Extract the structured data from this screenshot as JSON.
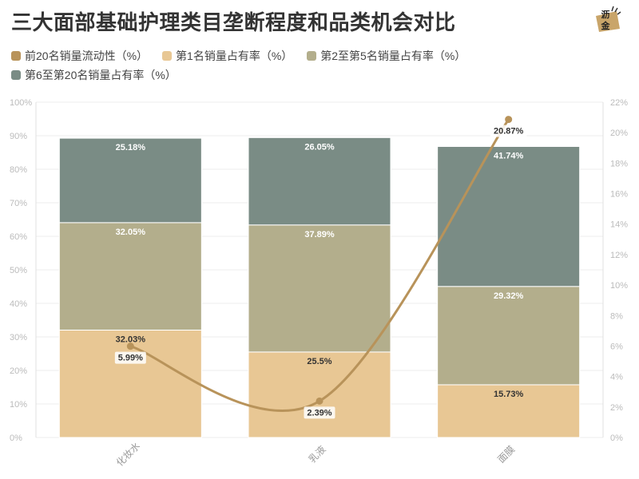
{
  "title": "三大面部基础护理类目垄断程度和品类机会对比",
  "logo": {
    "text_top": "沥",
    "text_bottom": "金",
    "icon": "lijin-logo-icon"
  },
  "chart_data": {
    "type": "bar",
    "stacked": true,
    "categories": [
      "化妆水",
      "乳液",
      "面膜"
    ],
    "series": [
      {
        "name": "第1名销量占有率（%）",
        "color": "#e8c794",
        "label_color": "#333333",
        "values": [
          32.03,
          25.5,
          15.73
        ],
        "labels": [
          "32.03%",
          "25.5%",
          "15.73%"
        ]
      },
      {
        "name": "第2至第5名销量占有率（%）",
        "color": "#b3ae8c",
        "label_color": "#ffffff",
        "values": [
          32.05,
          37.89,
          29.32
        ],
        "labels": [
          "32.05%",
          "37.89%",
          "29.32%"
        ]
      },
      {
        "name": "第6至第20名销量占有率（%）",
        "color": "#7a8c85",
        "label_color": "#ffffff",
        "values": [
          25.18,
          26.05,
          41.74
        ],
        "labels": [
          "25.18%",
          "26.05%",
          "41.74%"
        ]
      }
    ],
    "line_series": {
      "name": "前20名销量流动性（%）",
      "color": "#b8935a",
      "axis": "right",
      "values": [
        5.99,
        2.39,
        20.87
      ],
      "labels": [
        "5.99%",
        "2.39%",
        "20.87%"
      ]
    },
    "legend_order": [
      "前20名销量流动性（%）",
      "第1名销量占有率（%）",
      "第2至第5名销量占有率（%）",
      "第6至第20名销量占有率（%）"
    ],
    "legend_colors": [
      "#b8935a",
      "#e8c794",
      "#b3ae8c",
      "#7a8c85"
    ],
    "y_left": {
      "ylim": [
        0,
        100
      ],
      "ticks": [
        "0%",
        "10%",
        "20%",
        "30%",
        "40%",
        "50%",
        "60%",
        "70%",
        "80%",
        "90%",
        "100%"
      ]
    },
    "y_right": {
      "ylim": [
        0,
        22
      ],
      "ticks": [
        "0%",
        "2%",
        "4%",
        "6%",
        "8%",
        "10%",
        "12%",
        "14%",
        "16%",
        "18%",
        "20%",
        "22%"
      ]
    },
    "grid": true,
    "legend_position": "top-left"
  }
}
